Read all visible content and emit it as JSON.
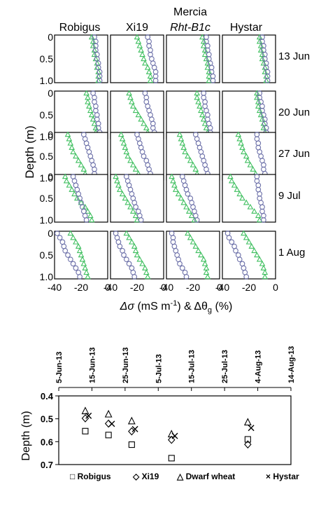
{
  "chart_data": [
    {
      "type": "scatter",
      "panel": "depth-profiles",
      "ylabel": "Depth (m)",
      "xlabel": "Δσ (mS m-1) & Δθg (%)",
      "xlabel_parts": {
        "delta_sigma": "Δσ",
        "sigma_unit": " (mS m",
        "sigma_exp": "-1",
        "amp": ") & Δθ",
        "theta_sub": "g",
        "theta_unit": " (%)"
      },
      "columns": [
        {
          "name": "Robigus"
        },
        {
          "name": "Xi19"
        },
        {
          "name": "Mercia",
          "name2": "Rht-B1c"
        },
        {
          "name": "Hystar"
        }
      ],
      "rows": [
        "13 Jun",
        "20 Jun",
        "27 Jun",
        "9 Jul",
        "1 Aug"
      ],
      "y_ticks": [
        "0",
        "0.5",
        "1.0"
      ],
      "x_ticks": [
        "-40",
        "-20",
        "0"
      ],
      "ylim": [
        0,
        1.0
      ],
      "xlim": [
        -40,
        0
      ],
      "series": [
        {
          "name": "Δσ",
          "marker": "circle",
          "color": "#6b6fa8"
        },
        {
          "name": "Δθg",
          "marker": "triangle",
          "color": "#3fbf5f"
        }
      ],
      "depths": [
        0.0,
        0.1,
        0.2,
        0.3,
        0.4,
        0.5,
        0.6,
        0.7,
        0.8,
        0.9,
        1.0
      ],
      "profiles": {
        "circle": [
          [
            [
              -10,
              -9,
              -9,
              -9,
              -8,
              -8,
              -7,
              -7,
              -6,
              -6,
              -6
            ],
            [
              -12,
              -11,
              -11,
              -10,
              -10,
              -9,
              -8,
              -7,
              -6,
              -6,
              -6
            ],
            [
              -10,
              -10,
              -9,
              -9,
              -8,
              -8,
              -7,
              -6,
              -6,
              -5,
              -5
            ],
            [
              -10,
              -10,
              -9,
              -9,
              -8,
              -8,
              -7,
              -7,
              -6,
              -6,
              -6
            ]
          ],
          [
            [
              -11,
              -10,
              -10,
              -9,
              -9,
              -8,
              -8,
              -7,
              -7,
              -6,
              -6
            ],
            [
              -14,
              -13,
              -13,
              -12,
              -11,
              -10,
              -9,
              -8,
              -8,
              -7,
              -7
            ],
            [
              -12,
              -12,
              -11,
              -11,
              -10,
              -9,
              -9,
              -8,
              -7,
              -7,
              -6
            ],
            [
              -12,
              -12,
              -11,
              -10,
              -10,
              -9,
              -8,
              -8,
              -7,
              -7,
              -6
            ]
          ],
          [
            [
              -18,
              -17,
              -16,
              -15,
              -14,
              -13,
              -12,
              -11,
              -10,
              -10,
              -9
            ],
            [
              -20,
              -19,
              -18,
              -17,
              -16,
              -15,
              -13,
              -12,
              -11,
              -10,
              -9
            ],
            [
              -18,
              -17,
              -16,
              -15,
              -14,
              -13,
              -12,
              -11,
              -10,
              -9,
              -8
            ],
            [
              -14,
              -14,
              -13,
              -13,
              -12,
              -11,
              -10,
              -9,
              -9,
              -8,
              -8
            ]
          ],
          [
            [
              -26,
              -25,
              -24,
              -23,
              -22,
              -21,
              -20,
              -19,
              -18,
              -17,
              -16
            ],
            [
              -28,
              -27,
              -26,
              -25,
              -24,
              -23,
              -22,
              -21,
              -19,
              -18,
              -17
            ],
            [
              -28,
              -27,
              -26,
              -25,
              -24,
              -22,
              -21,
              -20,
              -19,
              -18,
              -17
            ],
            [
              -14,
              -14,
              -13,
              -13,
              -12,
              -12,
              -11,
              -10,
              -10,
              -9,
              -9
            ]
          ],
          [
            [
              -38,
              -36,
              -34,
              -33,
              -32,
              -30,
              -28,
              -26,
              -24,
              -22,
              -21
            ],
            [
              -36,
              -35,
              -34,
              -33,
              -31,
              -30,
              -28,
              -26,
              -24,
              -23,
              -22
            ],
            [
              -36,
              -35,
              -35,
              -34,
              -33,
              -32,
              -31,
              -30,
              -28,
              -26,
              -25
            ],
            [
              -36,
              -35,
              -33,
              -31,
              -30,
              -28,
              -27,
              -25,
              -24,
              -23,
              -22
            ]
          ]
        ],
        "triangle": [
          [
            [
              -12,
              -11,
              -11,
              -10,
              -10,
              -9,
              -8,
              -8,
              -7,
              -7,
              -7
            ],
            [
              -20,
              -19,
              -18,
              -17,
              -16,
              -15,
              -14,
              -12,
              -11,
              -10,
              -10
            ],
            [
              -13,
              -12,
              -12,
              -11,
              -11,
              -10,
              -9,
              -9,
              -8,
              -8,
              -8
            ],
            [
              -12,
              -12,
              -11,
              -11,
              -10,
              -10,
              -9,
              -8,
              -8,
              -7,
              -7
            ]
          ],
          [
            [
              -16,
              -15,
              -15,
              -14,
              -13,
              -12,
              -11,
              -10,
              -9,
              -9,
              -9
            ],
            [
              -26,
              -25,
              -24,
              -23,
              -21,
              -19,
              -17,
              -15,
              -13,
              -12,
              -11
            ],
            [
              -17,
              -17,
              -16,
              -15,
              -14,
              -13,
              -12,
              -11,
              -10,
              -9,
              -8
            ],
            [
              -14,
              -14,
              -13,
              -13,
              -12,
              -11,
              -10,
              -9,
              -9,
              -8,
              -7
            ]
          ],
          [
            [
              -30,
              -29,
              -28,
              -27,
              -26,
              -24,
              -22,
              -20,
              -18,
              -17,
              -16
            ],
            [
              -32,
              -31,
              -30,
              -29,
              -28,
              -27,
              -25,
              -23,
              -21,
              -19,
              -18
            ],
            [
              -30,
              -29,
              -28,
              -27,
              -26,
              -24,
              -22,
              -20,
              -18,
              -17,
              -15
            ],
            [
              -28,
              -27,
              -26,
              -25,
              -24,
              -22,
              -21,
              -19,
              -17,
              -15,
              -14
            ]
          ],
          [
            [
              -32,
              -31,
              -29,
              -27,
              -25,
              -23,
              -20,
              -17,
              -15,
              -13,
              -12
            ],
            [
              -36,
              -35,
              -34,
              -33,
              -31,
              -29,
              -27,
              -25,
              -23,
              -21,
              -20
            ],
            [
              -36,
              -35,
              -34,
              -33,
              -31,
              -29,
              -27,
              -25,
              -23,
              -21,
              -19
            ],
            [
              -34,
              -33,
              -31,
              -29,
              -27,
              -25,
              -22,
              -19,
              -16,
              -13,
              -12
            ]
          ],
          [
            [
              -28,
              -26,
              -24,
              -22,
              -21,
              -20,
              -19,
              -18,
              -17,
              -16,
              -15
            ],
            [
              -28,
              -26,
              -24,
              -22,
              -21,
              -20,
              -18,
              -16,
              -14,
              -13,
              -12
            ],
            [
              -24,
              -22,
              -20,
              -18,
              -16,
              -14,
              -12,
              -11,
              -10,
              -10,
              -9
            ],
            [
              -24,
              -22,
              -20,
              -18,
              -16,
              -14,
              -12,
              -10,
              -9,
              -8,
              -8
            ]
          ]
        ]
      }
    },
    {
      "type": "scatter",
      "panel": "depth-by-date",
      "ylabel": "Depth (m)",
      "x_ticks": [
        "5-Jun-13",
        "15-Jun-13",
        "25-Jun-13",
        "5-Jul-13",
        "15-Jul-13",
        "25-Jul-13",
        "4-Aug-13",
        "14-Aug-13"
      ],
      "y_ticks": [
        "0.4",
        "0.5",
        "0.6",
        "0.7"
      ],
      "ylim": [
        0.4,
        0.7
      ],
      "xlim": [
        "2013-06-05",
        "2013-08-14"
      ],
      "legend": [
        {
          "name": "Robigus",
          "marker": "□"
        },
        {
          "name": "Xi19",
          "marker": "◇"
        },
        {
          "name": "Dwarf wheat",
          "marker": "△"
        },
        {
          "name": "Hystar",
          "marker": "×"
        }
      ],
      "series": [
        {
          "name": "Robigus",
          "marker": "square",
          "points": [
            [
              "2013-06-13",
              0.554
            ],
            [
              "2013-06-20",
              0.571
            ],
            [
              "2013-06-27",
              0.613
            ],
            [
              "2013-07-09",
              0.672
            ],
            [
              "2013-08-01",
              0.59
            ]
          ]
        },
        {
          "name": "Xi19",
          "marker": "diamond",
          "points": [
            [
              "2013-06-13",
              0.498
            ],
            [
              "2013-06-20",
              0.521
            ],
            [
              "2013-06-27",
              0.555
            ],
            [
              "2013-07-09",
              0.592
            ],
            [
              "2013-08-01",
              0.612
            ]
          ]
        },
        {
          "name": "Dwarf wheat",
          "marker": "triangle",
          "points": [
            [
              "2013-06-13",
              0.466
            ],
            [
              "2013-06-20",
              0.48
            ],
            [
              "2013-06-27",
              0.51
            ],
            [
              "2013-07-09",
              0.567
            ],
            [
              "2013-08-01",
              0.515
            ]
          ]
        },
        {
          "name": "Hystar",
          "marker": "cross",
          "points": [
            [
              "2013-06-14",
              0.487
            ],
            [
              "2013-06-21",
              0.522
            ],
            [
              "2013-06-28",
              0.545
            ],
            [
              "2013-07-10",
              0.575
            ],
            [
              "2013-08-02",
              0.54
            ]
          ]
        }
      ]
    }
  ]
}
